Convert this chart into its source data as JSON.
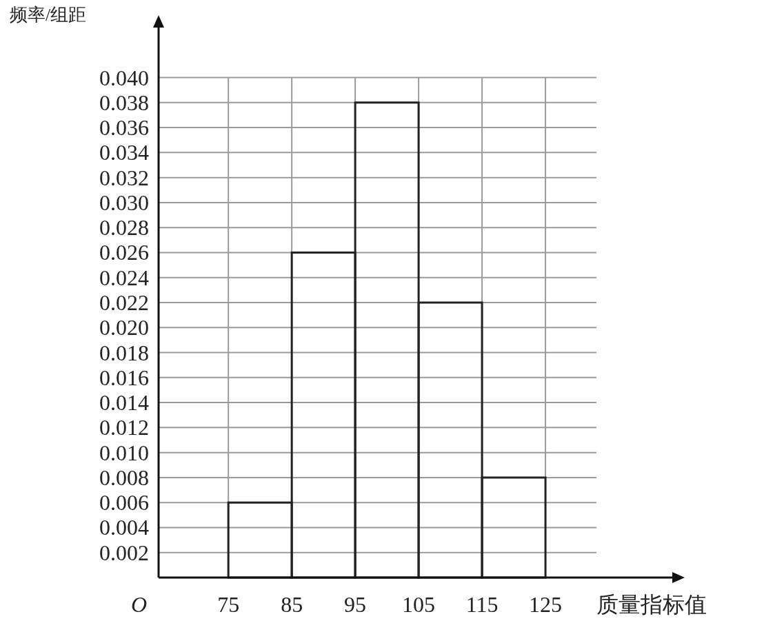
{
  "chart_data": {
    "type": "histogram",
    "xlabel": "质量指标值",
    "ylabel": "频率/组距",
    "bins": [
      75,
      85,
      95,
      105,
      115,
      125
    ],
    "values": [
      0.006,
      0.026,
      0.038,
      0.022,
      0.008
    ],
    "color": "#222222",
    "xlim": [
      64,
      145
    ],
    "ylim": [
      0,
      0.044
    ],
    "xticks": [
      75,
      85,
      95,
      105,
      115,
      125
    ],
    "yticks": [
      {
        "value": 0.002,
        "label": "0.002"
      },
      {
        "value": 0.004,
        "label": "0.004"
      },
      {
        "value": 0.006,
        "label": "0.006"
      },
      {
        "value": 0.008,
        "label": "0.008"
      },
      {
        "value": 0.01,
        "label": "0.010"
      },
      {
        "value": 0.012,
        "label": "0.012"
      },
      {
        "value": 0.014,
        "label": "0.014"
      },
      {
        "value": 0.016,
        "label": "0.016"
      },
      {
        "value": 0.018,
        "label": "0.018"
      },
      {
        "value": 0.02,
        "label": "0.020"
      },
      {
        "value": 0.022,
        "label": "0.022"
      },
      {
        "value": 0.024,
        "label": "0.024"
      },
      {
        "value": 0.026,
        "label": "0.026"
      },
      {
        "value": 0.028,
        "label": "0.028"
      },
      {
        "value": 0.03,
        "label": "0.030"
      },
      {
        "value": 0.032,
        "label": "0.032"
      },
      {
        "value": 0.034,
        "label": "0.034"
      },
      {
        "value": 0.036,
        "label": "0.036"
      },
      {
        "value": 0.038,
        "label": "0.038"
      },
      {
        "value": 0.04,
        "label": "0.040"
      }
    ],
    "grid": true,
    "annotations": [
      "O"
    ]
  }
}
